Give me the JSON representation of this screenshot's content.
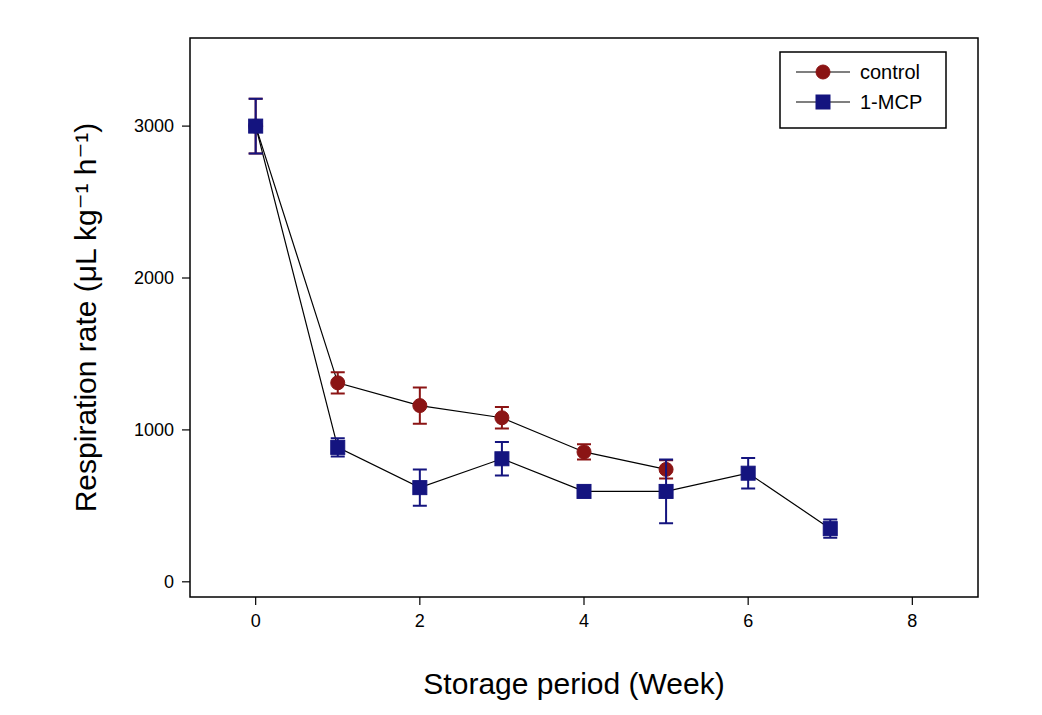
{
  "chart_data": {
    "type": "line",
    "x_label": "Storage period (Week)",
    "y_label": "Respiration rate (μL kg⁻¹ h⁻¹)",
    "x": [
      0,
      1,
      2,
      3,
      4,
      5,
      6,
      7
    ],
    "xlim": [
      -0.8,
      8.8
    ],
    "xticks": [
      0,
      2,
      4,
      6,
      8
    ],
    "ylim": [
      -100,
      3580
    ],
    "yticks": [
      0,
      1000,
      2000,
      3000
    ],
    "grid": false,
    "legend": "upper right",
    "series": [
      {
        "name": "control",
        "color": "#8b1414",
        "marker": "circle",
        "line_style": "solid",
        "values": [
          3000,
          1310,
          1160,
          1080,
          855,
          740,
          null,
          null
        ],
        "errors": [
          180,
          70,
          120,
          70,
          50,
          60,
          null,
          null
        ]
      },
      {
        "name": "1-MCP",
        "color": "#14147f",
        "marker": "square",
        "line_style": "solid",
        "values": [
          3000,
          885,
          620,
          810,
          595,
          595,
          715,
          350
        ],
        "errors": [
          180,
          60,
          120,
          110,
          35,
          210,
          100,
          60
        ]
      }
    ]
  }
}
